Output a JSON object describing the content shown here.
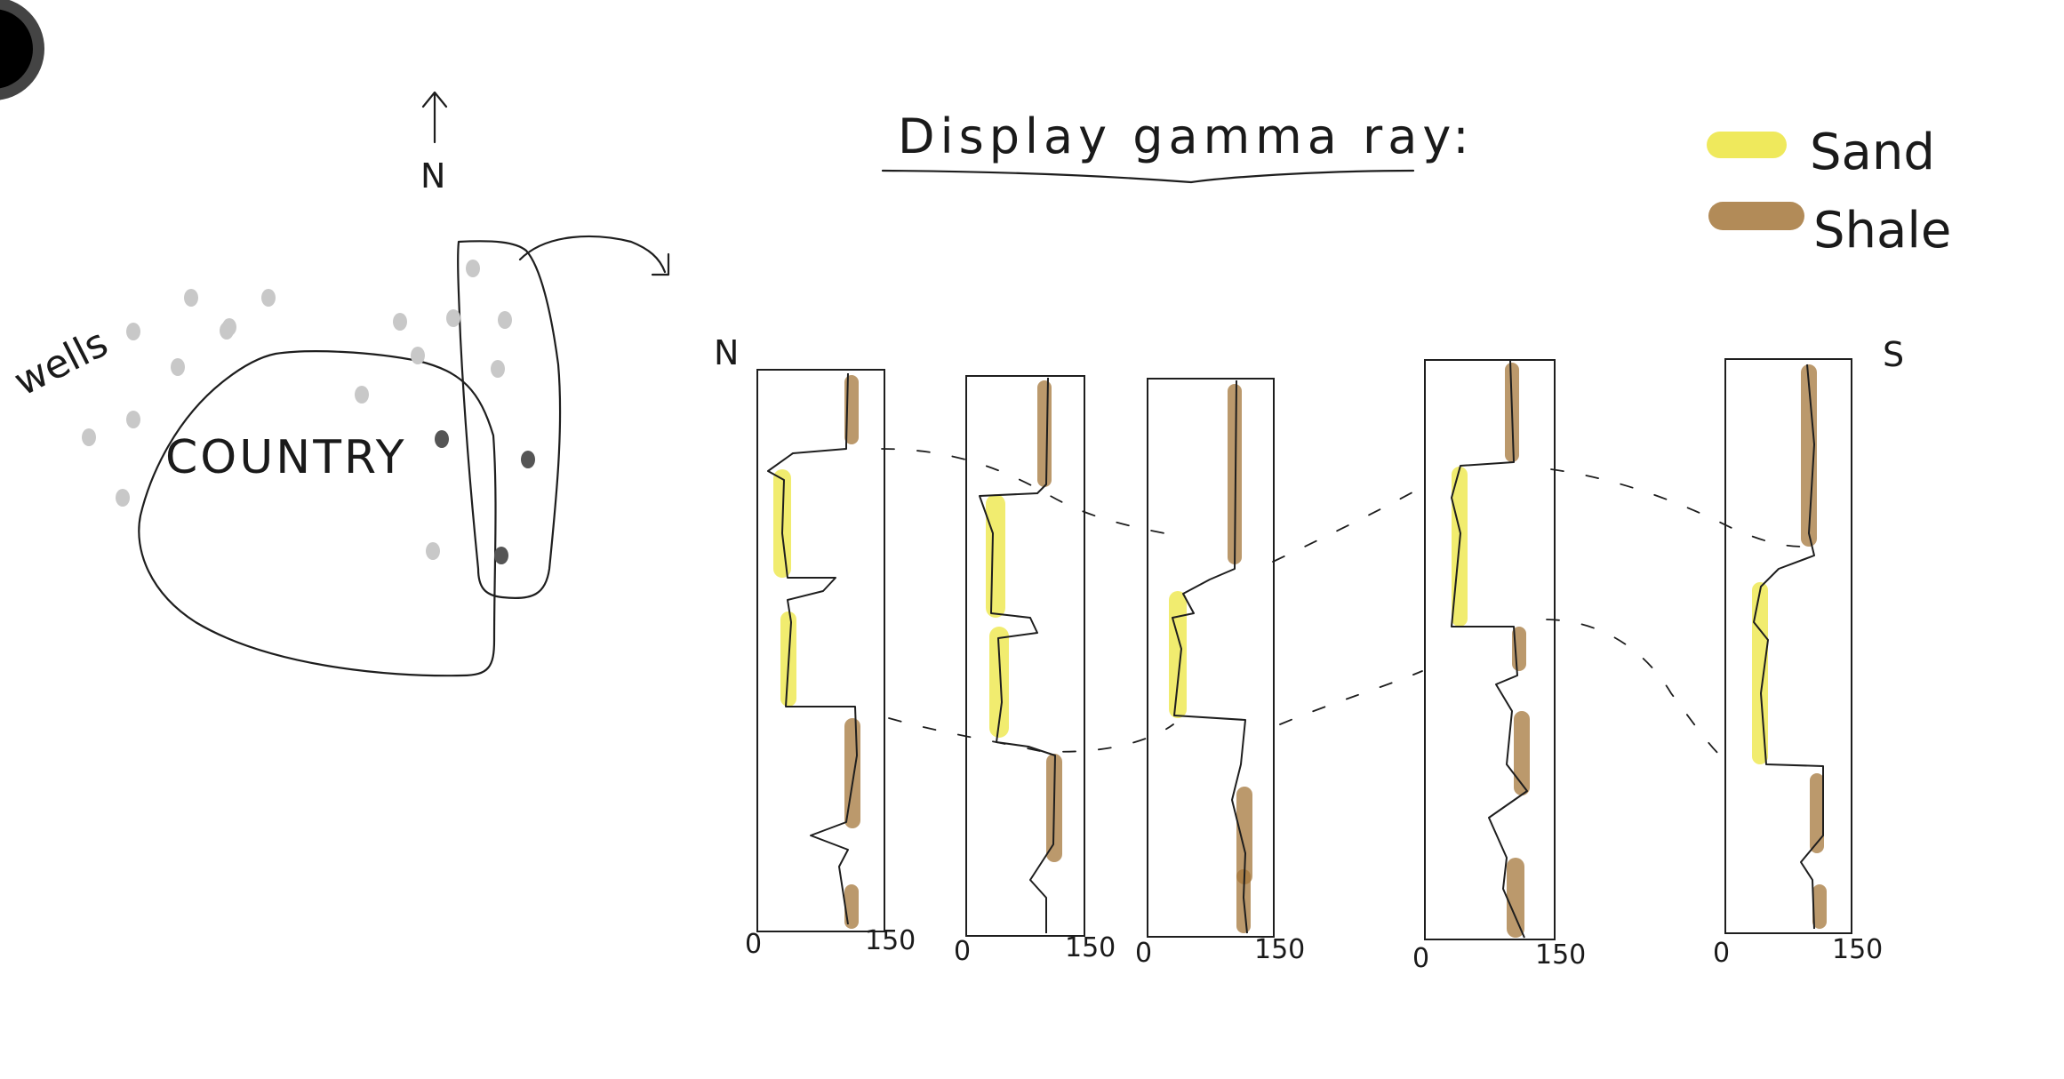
{
  "title": "Display gamma ray:",
  "north_arrow": "N",
  "map": {
    "country_label": "COUNTRY",
    "wells_label": "wells"
  },
  "legend": [
    {
      "label": "Sand",
      "color": "#ece53f"
    },
    {
      "label": "Shale",
      "color": "#a4773b"
    }
  ],
  "section": {
    "left_label": "N",
    "right_label": "S"
  },
  "logs": [
    {
      "axis_min": "0",
      "axis_max": "150"
    },
    {
      "axis_min": "0",
      "axis_max": "150"
    },
    {
      "axis_min": "0",
      "axis_max": "150"
    },
    {
      "axis_min": "0",
      "axis_max": "150"
    },
    {
      "axis_min": "0",
      "axis_max": "150"
    }
  ],
  "colors": {
    "ink": "#1e1e1e",
    "sand": "#ece53f",
    "shale": "#a4773b",
    "well_light": "#c8c8c8",
    "well_dark": "#555555"
  }
}
